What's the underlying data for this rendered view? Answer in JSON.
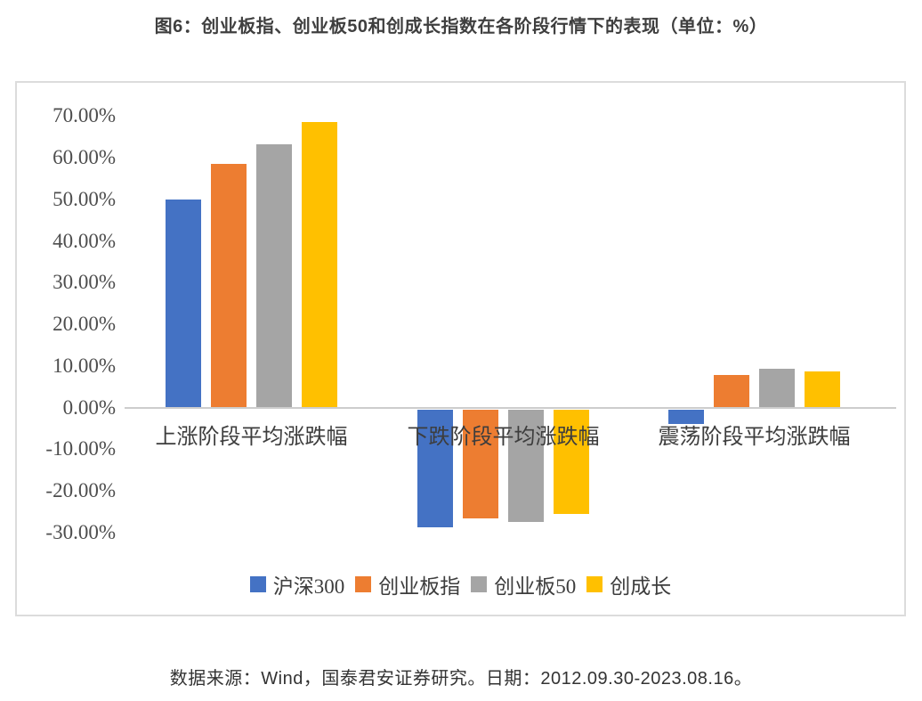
{
  "source_note": "数据来源：Wind，国泰君安证券研究。日期：2012.09.30-2023.08.16。",
  "chart_data": {
    "type": "bar",
    "title": "图6：创业板指、创业板50和创成长指数在各阶段行情下的表现（单位：%）",
    "categories": [
      "上涨阶段平均涨跌幅",
      "下跌阶段平均涨跌幅",
      "震荡阶段平均涨跌幅"
    ],
    "series": [
      {
        "name": "沪深300",
        "color": "#4472C4",
        "values": [
          50.0,
          -28.3,
          -3.6
        ]
      },
      {
        "name": "创业板指",
        "color": "#ED7D31",
        "values": [
          58.5,
          -26.2,
          7.9
        ]
      },
      {
        "name": "创业板50",
        "color": "#A5A5A5",
        "values": [
          63.3,
          -27.1,
          9.3
        ]
      },
      {
        "name": "创成长",
        "color": "#FFC000",
        "values": [
          68.5,
          -25.1,
          8.7
        ]
      }
    ],
    "xlabel": "",
    "ylabel": "",
    "ylim": [
      -30,
      70
    ],
    "ytick_step": 10,
    "grid": false,
    "legend_position": "bottom",
    "yticks": [
      {
        "value": 70,
        "label": "70.00%"
      },
      {
        "value": 60,
        "label": "60.00%"
      },
      {
        "value": 50,
        "label": "50.00%"
      },
      {
        "value": 40,
        "label": "40.00%"
      },
      {
        "value": 30,
        "label": "30.00%"
      },
      {
        "value": 20,
        "label": "20.00%"
      },
      {
        "value": 10,
        "label": "10.00%"
      },
      {
        "value": 0,
        "label": "0.00%"
      },
      {
        "value": -10,
        "label": "-10.00%"
      },
      {
        "value": -20,
        "label": "-20.00%"
      },
      {
        "value": -30,
        "label": "-30.00%"
      }
    ]
  }
}
